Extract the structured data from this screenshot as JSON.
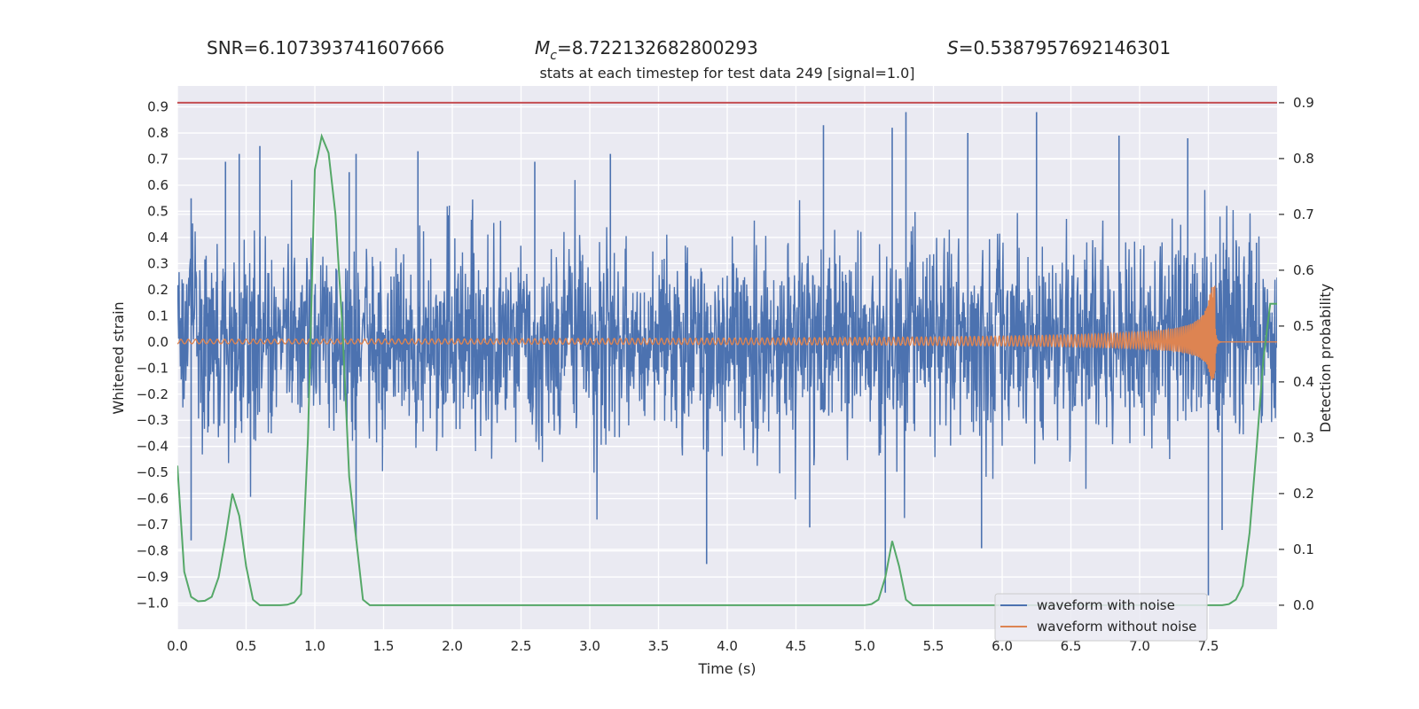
{
  "header": {
    "snr": "SNR=6.107393741607666",
    "mc_value": "=8.722132682800293",
    "s_value": "=0.5387957692146301"
  },
  "chart_data": {
    "type": "line",
    "title": "stats at each timestep for test data 249 [signal=1.0]",
    "xlabel": "Time (s)",
    "ylabel_left": "Whitened strain",
    "ylabel_right": "Detection probability",
    "xlim": [
      0,
      8
    ],
    "ylim_left": [
      -1.1,
      0.98
    ],
    "ylim_right": [
      -0.043,
      0.93
    ],
    "x_ticks": [
      "0.0",
      "0.5",
      "1.0",
      "1.5",
      "2.0",
      "2.5",
      "3.0",
      "3.5",
      "4.0",
      "4.5",
      "5.0",
      "5.5",
      "6.0",
      "6.5",
      "7.0",
      "7.5"
    ],
    "y_left_ticks": [
      "0.9",
      "0.8",
      "0.7",
      "0.6",
      "0.5",
      "0.4",
      "0.3",
      "0.2",
      "0.1",
      "0.0",
      "−0.1",
      "−0.2",
      "−0.3",
      "−0.4",
      "−0.5",
      "−0.6",
      "−0.7",
      "−0.8",
      "−0.9",
      "−1.0"
    ],
    "y_right_ticks": [
      "0.9",
      "0.8",
      "0.7",
      "0.6",
      "0.5",
      "0.4",
      "0.3",
      "0.2",
      "0.1",
      "0.0"
    ],
    "grid": true,
    "legend_position": "lower-right",
    "colors": {
      "background": "#eaeaf2",
      "noisy": "#4c72b0",
      "clean": "#dd8452",
      "probability": "#55a868",
      "threshold": "#c44e52"
    },
    "threshold": 0.9,
    "series": [
      {
        "name": "waveform with noise",
        "axis": "left",
        "envelope_peaks": [
          [
            0.1,
            0.55
          ],
          [
            0.35,
            0.69
          ],
          [
            0.45,
            0.72
          ],
          [
            0.6,
            0.75
          ],
          [
            1.25,
            0.65
          ],
          [
            1.3,
            0.72
          ],
          [
            1.75,
            0.73
          ],
          [
            2.6,
            0.69
          ],
          [
            3.15,
            0.72
          ],
          [
            4.7,
            0.83
          ],
          [
            5.2,
            0.82
          ],
          [
            5.3,
            0.88
          ],
          [
            5.75,
            0.8
          ],
          [
            6.25,
            0.88
          ],
          [
            6.85,
            0.79
          ],
          [
            7.35,
            0.78
          ],
          [
            7.85,
            0.38
          ]
        ],
        "envelope_troughs": [
          [
            0.1,
            -0.76
          ],
          [
            1.3,
            -0.76
          ],
          [
            3.85,
            -0.85
          ],
          [
            4.6,
            -0.71
          ],
          [
            5.15,
            -0.96
          ],
          [
            5.85,
            -0.79
          ],
          [
            7.5,
            -0.97
          ],
          [
            7.6,
            -0.72
          ]
        ]
      },
      {
        "name": "waveform without noise",
        "axis": "left",
        "chirp": {
          "start_amplitude": 0.01,
          "peak_time": 7.55,
          "peak_max": 0.22,
          "peak_min": -0.15
        }
      },
      {
        "name": "",
        "axis": "right",
        "x": [
          0.0,
          0.05,
          0.1,
          0.15,
          0.2,
          0.25,
          0.3,
          0.35,
          0.4,
          0.45,
          0.5,
          0.55,
          0.6,
          0.65,
          0.7,
          0.75,
          0.8,
          0.85,
          0.9,
          0.95,
          1.0,
          1.05,
          1.1,
          1.15,
          1.2,
          1.25,
          1.3,
          1.35,
          1.4,
          1.45,
          1.5,
          1.55,
          1.6,
          1.65,
          1.7,
          1.75,
          1.8,
          5.0,
          5.05,
          5.1,
          5.15,
          5.2,
          5.25,
          5.3,
          5.35,
          5.4,
          7.5,
          7.55,
          7.6,
          7.65,
          7.7,
          7.75,
          7.8,
          7.85,
          7.9,
          7.95,
          8.0
        ],
        "y": [
          0.25,
          0.06,
          0.015,
          0.007,
          0.008,
          0.015,
          0.05,
          0.12,
          0.2,
          0.16,
          0.07,
          0.01,
          0.0,
          0.0,
          0.0,
          0.0,
          0.001,
          0.005,
          0.02,
          0.3,
          0.78,
          0.84,
          0.81,
          0.7,
          0.5,
          0.23,
          0.12,
          0.01,
          0.0,
          0.0,
          0.0,
          0.0,
          0.0,
          0.0,
          0.0,
          0.0,
          0.0,
          0.0,
          0.002,
          0.01,
          0.05,
          0.115,
          0.07,
          0.01,
          0.0,
          0.0,
          0.0,
          0.0,
          0.0,
          0.002,
          0.01,
          0.035,
          0.13,
          0.28,
          0.44,
          0.54,
          0.54
        ]
      }
    ]
  }
}
